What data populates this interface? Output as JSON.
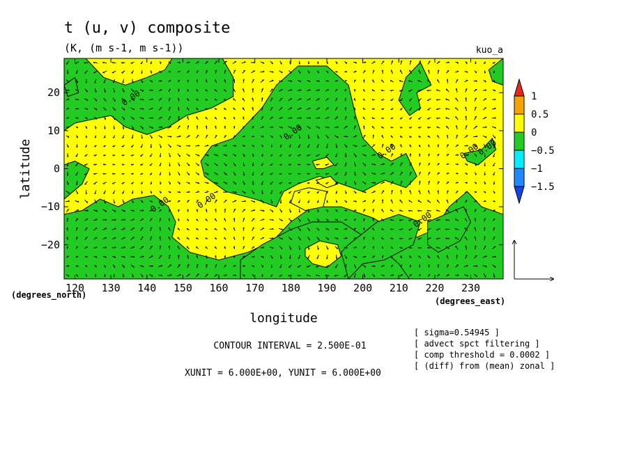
{
  "chart_data": {
    "type": "heatmap",
    "title": "t (u, v) composite",
    "subtitle": "(K, (m s-1, m s-1))",
    "dataset_label": "kuo_a",
    "xlabel": "longitude",
    "ylabel": "latitude",
    "x_units": "(degrees_east)",
    "y_units": "(degrees_north)",
    "xlim": [
      117,
      239
    ],
    "ylim": [
      -29,
      29
    ],
    "x_ticks": [
      120,
      130,
      140,
      150,
      160,
      170,
      180,
      190,
      200,
      210,
      220,
      230
    ],
    "y_ticks": [
      -20,
      -10,
      0,
      10,
      20
    ],
    "x_tick_labels": [
      "120",
      "130",
      "140",
      "150",
      "160",
      "170",
      "180",
      "190",
      "200",
      "210",
      "220",
      "230"
    ],
    "y_tick_labels": [
      "−20",
      "−10",
      "0",
      "10",
      "20"
    ],
    "colorbar": {
      "labels": [
        "1",
        "0.5",
        "0",
        "−0.5",
        "−1",
        "−1.5"
      ],
      "levels": [
        1,
        0.5,
        0,
        -0.5,
        -1,
        -1.5
      ],
      "colors": [
        "#e8261c",
        "#f7a200",
        "#ffff00",
        "#22cc22",
        "#00eeff",
        "#2288ff",
        "#1144ee"
      ]
    },
    "contour_label": "0.00",
    "contour_labels": [
      "0.00",
      "0.00",
      "0.00",
      "0.00",
      "0.00",
      "0.00",
      "0.00",
      "0.00"
    ],
    "contour_interval_text": "CONTOUR INTERVAL = 2.500E-01",
    "vector_units_text": "XUNIT = 6.000E+00, YUNIT = 6.000E+00",
    "notes": [
      "[ sigma=0.54945 ]",
      "[ advect spct filtering ]",
      "[ comp threshold = 0.0002 ]",
      "[ (diff) from (mean) zonal ]"
    ],
    "field_colors": {
      "positive": "#ffff00",
      "negative": "#22cc22"
    },
    "regions_negative": [
      [
        [
          117,
          10
        ],
        [
          117,
          29
        ],
        [
          123,
          29
        ],
        [
          128,
          24
        ],
        [
          134,
          22
        ],
        [
          140,
          24
        ],
        [
          145,
          26
        ],
        [
          147,
          29
        ],
        [
          161,
          29
        ],
        [
          164,
          24
        ],
        [
          164,
          19
        ],
        [
          158,
          16
        ],
        [
          151,
          14
        ],
        [
          146,
          11
        ],
        [
          140,
          9
        ],
        [
          134,
          11
        ],
        [
          130,
          14
        ],
        [
          125,
          13
        ],
        [
          120,
          12
        ]
      ],
      [
        [
          117,
          1
        ],
        [
          117,
          -8
        ],
        [
          122,
          -4
        ],
        [
          124,
          0
        ],
        [
          120,
          2
        ]
      ],
      [
        [
          117,
          -12
        ],
        [
          122,
          -11
        ],
        [
          127,
          -8
        ],
        [
          132,
          -10
        ],
        [
          136,
          -8
        ],
        [
          142,
          -7
        ],
        [
          146,
          -10
        ],
        [
          148,
          -14
        ],
        [
          147,
          -18
        ],
        [
          152,
          -22
        ],
        [
          160,
          -24
        ],
        [
          168,
          -22
        ],
        [
          175,
          -19
        ],
        [
          180,
          -14
        ],
        [
          186,
          -10
        ],
        [
          194,
          -10
        ],
        [
          203,
          -13
        ],
        [
          210,
          -17
        ],
        [
          215,
          -18
        ],
        [
          220,
          -16
        ],
        [
          224,
          -10
        ],
        [
          229,
          -6
        ],
        [
          233,
          -10
        ],
        [
          239,
          -12
        ],
        [
          239,
          -29
        ],
        [
          117,
          -29
        ]
      ],
      [
        [
          166,
          -29
        ],
        [
          166,
          -24
        ],
        [
          172,
          -20
        ],
        [
          180,
          -16
        ],
        [
          186,
          -14
        ],
        [
          194,
          -14
        ],
        [
          204,
          -20
        ],
        [
          210,
          -25
        ],
        [
          213,
          -29
        ]
      ],
      [
        [
          155,
          2
        ],
        [
          158,
          6
        ],
        [
          164,
          8
        ],
        [
          168,
          12
        ],
        [
          172,
          16
        ],
        [
          176,
          22
        ],
        [
          182,
          27
        ],
        [
          190,
          27
        ],
        [
          196,
          22
        ],
        [
          198,
          14
        ],
        [
          200,
          8
        ],
        [
          204,
          4
        ],
        [
          208,
          2
        ],
        [
          212,
          4
        ],
        [
          215,
          -2
        ],
        [
          212,
          -5
        ],
        [
          206,
          -3
        ],
        [
          200,
          -6
        ],
        [
          194,
          -4
        ],
        [
          188,
          -2
        ],
        [
          182,
          -4
        ],
        [
          178,
          -6
        ],
        [
          176,
          -10
        ],
        [
          170,
          -8
        ],
        [
          162,
          -6
        ],
        [
          156,
          -2
        ]
      ],
      [
        [
          196,
          -20
        ],
        [
          204,
          -14
        ],
        [
          210,
          -12
        ],
        [
          216,
          -14
        ],
        [
          214,
          -20
        ],
        [
          206,
          -24
        ],
        [
          200,
          -25
        ],
        [
          196,
          -29
        ],
        [
          194,
          -22
        ]
      ],
      [
        [
          213,
          14
        ],
        [
          216,
          16
        ],
        [
          215,
          20
        ],
        [
          219,
          22
        ],
        [
          216,
          28
        ],
        [
          212,
          24
        ],
        [
          210,
          18
        ]
      ],
      [
        [
          218,
          -14
        ],
        [
          223,
          -12
        ],
        [
          228,
          -10
        ],
        [
          230,
          -14
        ],
        [
          227,
          -19
        ],
        [
          221,
          -22
        ],
        [
          218,
          -20
        ]
      ],
      [
        [
          228,
          4
        ],
        [
          233,
          5
        ],
        [
          236,
          8
        ],
        [
          237,
          5
        ],
        [
          232,
          1
        ],
        [
          229,
          2
        ]
      ],
      [
        [
          235,
          26
        ],
        [
          239,
          29
        ],
        [
          239,
          22
        ],
        [
          236,
          23
        ]
      ],
      [
        [
          117,
          22
        ],
        [
          120,
          24
        ],
        [
          121,
          20
        ],
        [
          118,
          19
        ]
      ]
    ],
    "regions_positive_islands": [
      [
        [
          181,
          -6
        ],
        [
          185,
          -5
        ],
        [
          190,
          -6
        ],
        [
          189,
          -10
        ],
        [
          184,
          -11
        ],
        [
          180,
          -9
        ]
      ],
      [
        [
          184,
          -21
        ],
        [
          188,
          -19
        ],
        [
          193,
          -20
        ],
        [
          194,
          -23
        ],
        [
          190,
          -26
        ],
        [
          186,
          -25
        ],
        [
          184,
          -23
        ]
      ],
      [
        [
          186,
          2
        ],
        [
          190,
          3
        ],
        [
          192,
          1
        ],
        [
          189,
          0
        ],
        [
          187,
          0
        ]
      ],
      [
        [
          187,
          -3
        ],
        [
          191,
          -2
        ],
        [
          193,
          -4
        ],
        [
          190,
          -5
        ],
        [
          188,
          -4
        ]
      ]
    ],
    "contour_label_positions": [
      [
        136,
        18
      ],
      [
        181,
        9
      ],
      [
        207,
        4
      ],
      [
        144,
        -10
      ],
      [
        157,
        -9
      ],
      [
        217,
        -14
      ],
      [
        235,
        5
      ],
      [
        230,
        4
      ]
    ]
  }
}
